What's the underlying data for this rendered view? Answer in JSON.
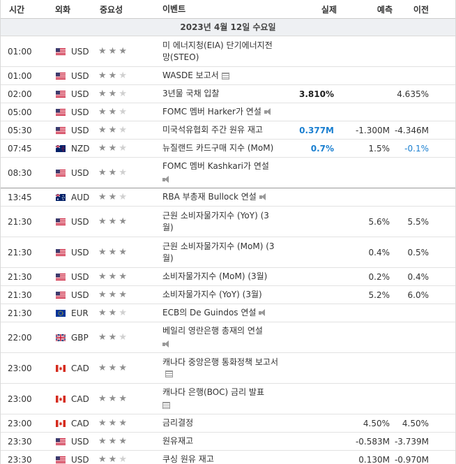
{
  "header": {
    "time": "시간",
    "currency": "외화",
    "importance": "중요성",
    "event": "이벤트",
    "actual": "실제",
    "forecast": "예측",
    "previous": "이전"
  },
  "date": "2023년 4월 12일 수요일",
  "rows": [
    {
      "time": "01:00",
      "cur": "USD",
      "flag": "us",
      "stars": 3,
      "event": "미 에너지청(EIA) 단기에너지전망(STEO)",
      "actual": "",
      "forecast": "",
      "previous": "",
      "h": 44
    },
    {
      "time": "01:00",
      "cur": "USD",
      "flag": "us",
      "stars": 2,
      "event": "WASDE 보고서",
      "icon": "doc",
      "actual": "",
      "forecast": "",
      "previous": "",
      "h": 26
    },
    {
      "time": "02:00",
      "cur": "USD",
      "flag": "us",
      "stars": 2,
      "event": "3년물 국채 입찰",
      "actual": "3.810%",
      "actual_style": "bold",
      "forecast": "",
      "previous": "4.635%",
      "h": 26
    },
    {
      "time": "05:00",
      "cur": "USD",
      "flag": "us",
      "stars": 2,
      "event": "FOMC 멤버 Harker가 연설",
      "icon": "spk",
      "actual": "",
      "forecast": "",
      "previous": "",
      "h": 26
    },
    {
      "time": "05:30",
      "cur": "USD",
      "flag": "us",
      "stars": 2,
      "event": "미국석유협회 주간 원유 재고",
      "actual": "0.377M",
      "actual_style": "blue",
      "forecast": "-1.300M",
      "previous": "-4.346M",
      "h": 26
    },
    {
      "time": "07:45",
      "cur": "NZD",
      "flag": "nz",
      "stars": 2,
      "event": "뉴질랜드 카드구매 지수 (MoM)",
      "actual": "0.7%",
      "actual_style": "blue",
      "forecast": "1.5%",
      "previous": "-0.1%",
      "previous_style": "blue",
      "h": 26
    },
    {
      "time": "08:30",
      "cur": "USD",
      "flag": "us",
      "stars": 2,
      "event": "FOMC 멤버 Kashkari가 연설",
      "icon": "spk",
      "icon_newline": true,
      "actual": "",
      "forecast": "",
      "previous": "",
      "h": 44,
      "sep": true
    },
    {
      "time": "13:45",
      "cur": "AUD",
      "flag": "au",
      "stars": 2,
      "event": "RBA 부총재 Bullock 연설",
      "icon": "spk",
      "actual": "",
      "forecast": "",
      "previous": "",
      "h": 26
    },
    {
      "time": "21:30",
      "cur": "USD",
      "flag": "us",
      "stars": 3,
      "event": "근원 소비자물가지수 (YoY) (3월)",
      "actual": "",
      "forecast": "5.6%",
      "previous": "5.5%",
      "h": 44
    },
    {
      "time": "21:30",
      "cur": "USD",
      "flag": "us",
      "stars": 3,
      "event": "근원 소비자물가지수 (MoM) (3월)",
      "actual": "",
      "forecast": "0.4%",
      "previous": "0.5%",
      "h": 44
    },
    {
      "time": "21:30",
      "cur": "USD",
      "flag": "us",
      "stars": 3,
      "event": "소비자물가지수 (MoM) (3월)",
      "actual": "",
      "forecast": "0.2%",
      "previous": "0.4%",
      "h": 26
    },
    {
      "time": "21:30",
      "cur": "USD",
      "flag": "us",
      "stars": 3,
      "event": "소비자물가지수 (YoY) (3월)",
      "actual": "",
      "forecast": "5.2%",
      "previous": "6.0%",
      "h": 26
    },
    {
      "time": "21:30",
      "cur": "EUR",
      "flag": "eu",
      "stars": 2,
      "event": "ECB의 De Guindos 연설",
      "icon": "spk",
      "actual": "",
      "forecast": "",
      "previous": "",
      "h": 26
    },
    {
      "time": "22:00",
      "cur": "GBP",
      "flag": "gb",
      "stars": 2,
      "event": "베일리 영란은행 총재의 연설",
      "icon": "spk",
      "icon_newline": true,
      "actual": "",
      "forecast": "",
      "previous": "",
      "h": 44
    },
    {
      "time": "23:00",
      "cur": "CAD",
      "flag": "ca",
      "stars": 3,
      "event": "캐나다 중앙은행 통화정책 보고서",
      "icon": "doc",
      "actual": "",
      "forecast": "",
      "previous": "",
      "h": 44
    },
    {
      "time": "23:00",
      "cur": "CAD",
      "flag": "ca",
      "stars": 3,
      "event": "캐나다 은행(BOC) 금리 발표",
      "icon": "doc",
      "icon_newline": true,
      "actual": "",
      "forecast": "",
      "previous": "",
      "h": 44
    },
    {
      "time": "23:00",
      "cur": "CAD",
      "flag": "ca",
      "stars": 3,
      "event": "금리결정",
      "actual": "",
      "forecast": "4.50%",
      "previous": "4.50%",
      "h": 26
    },
    {
      "time": "23:30",
      "cur": "USD",
      "flag": "us",
      "stars": 3,
      "event": "원유재고",
      "actual": "",
      "forecast": "-0.583M",
      "previous": "-3.739M",
      "h": 26
    },
    {
      "time": "23:30",
      "cur": "USD",
      "flag": "us",
      "stars": 2,
      "event": "쿠싱 원유 재고",
      "actual": "",
      "forecast": "0.130M",
      "previous": "-0.970M",
      "h": 26
    }
  ]
}
